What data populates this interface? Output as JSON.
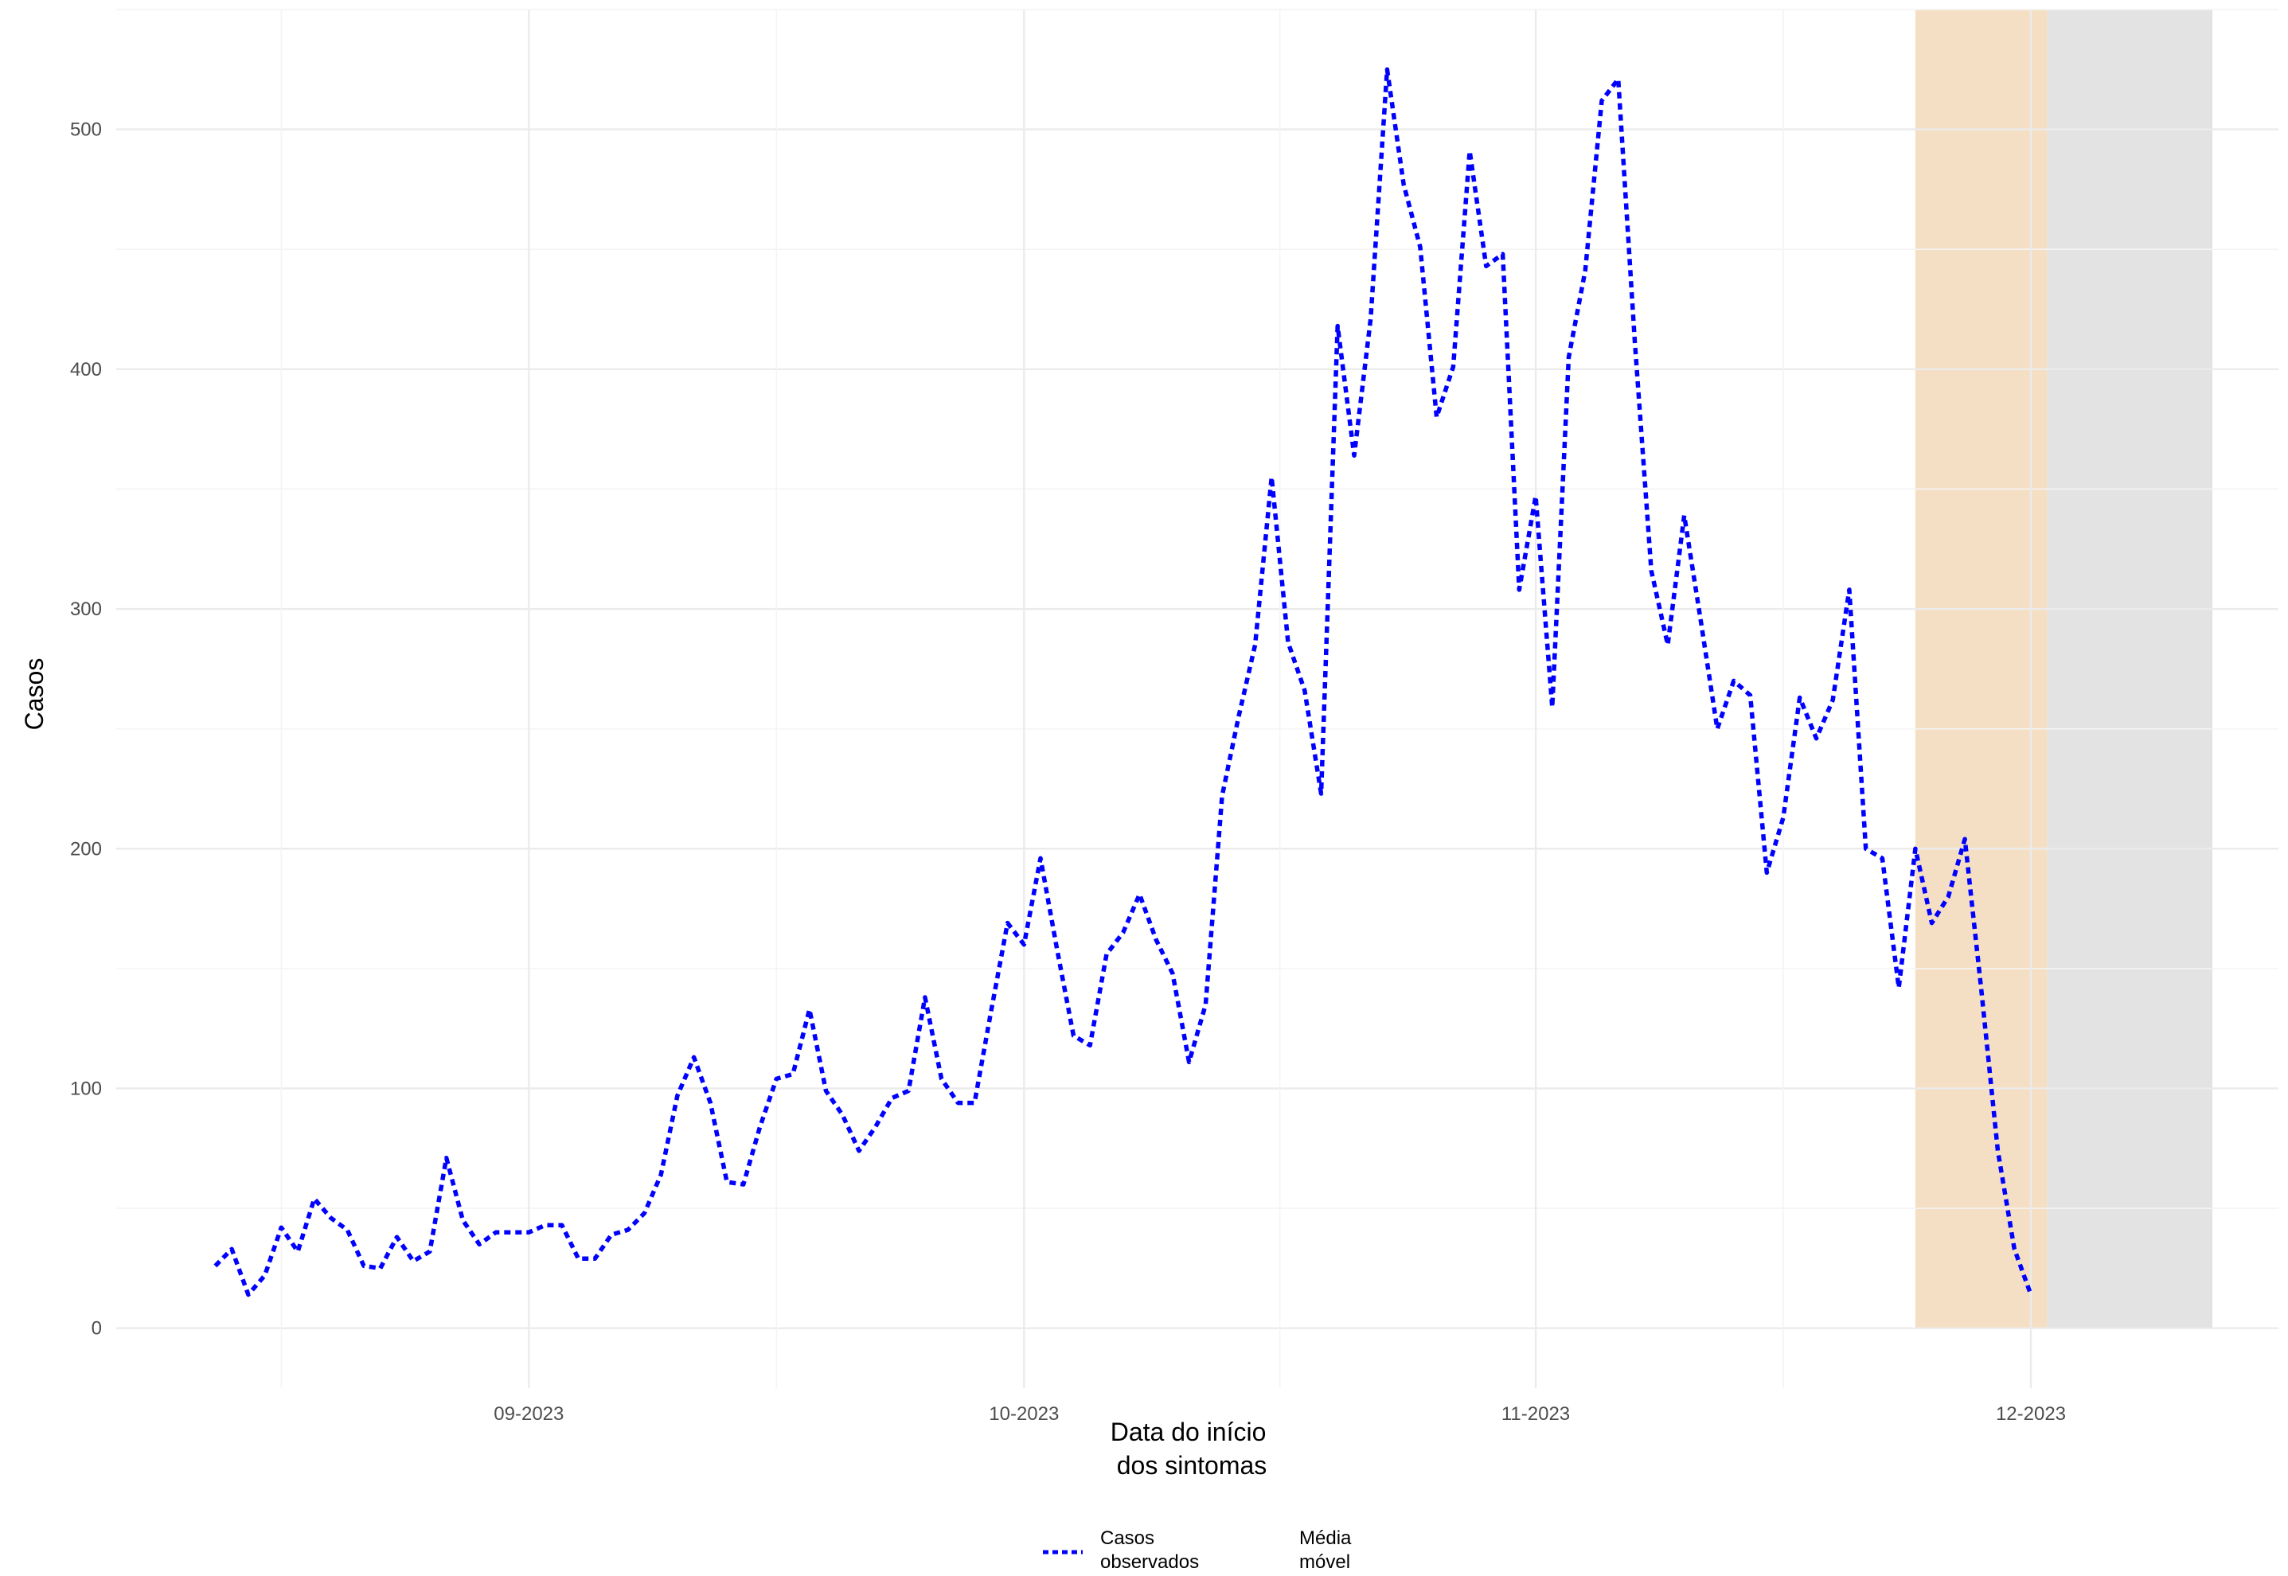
{
  "chart_data": {
    "type": "line",
    "xlabel": [
      "Data do início",
      "dos sintomas"
    ],
    "ylabel": "Casos",
    "x_ticks": [
      {
        "date": "2023-09-01",
        "label": "09-2023"
      },
      {
        "date": "2023-10-01",
        "label": "10-2023"
      },
      {
        "date": "2023-11-01",
        "label": "11-2023"
      },
      {
        "date": "2023-12-01",
        "label": "12-2023"
      }
    ],
    "y_ticks": [
      0,
      100,
      200,
      300,
      400,
      500
    ],
    "ylim": [
      -25,
      550
    ],
    "xlim": [
      "2023-08-07",
      "2023-12-16"
    ],
    "grid": true,
    "legend_position": "bottom",
    "shaded_regions": [
      {
        "start": "2023-11-24",
        "end": "2023-12-02",
        "color": "#f5dfc4"
      },
      {
        "start": "2023-12-02",
        "end": "2023-12-12",
        "color": "#e3e3e3"
      }
    ],
    "legend": [
      {
        "label": [
          "Casos",
          "observados"
        ],
        "color": "#0000ff",
        "style": "dotted"
      },
      {
        "label": [
          "Média",
          "móvel"
        ],
        "color": "",
        "style": "none"
      }
    ],
    "series": [
      {
        "name": "Casos observados",
        "color": "#0000ff",
        "style": "dotted",
        "x": [
          "2023-08-13",
          "2023-08-14",
          "2023-08-15",
          "2023-08-16",
          "2023-08-17",
          "2023-08-18",
          "2023-08-19",
          "2023-08-20",
          "2023-08-21",
          "2023-08-22",
          "2023-08-23",
          "2023-08-24",
          "2023-08-25",
          "2023-08-26",
          "2023-08-27",
          "2023-08-28",
          "2023-08-29",
          "2023-08-30",
          "2023-08-31",
          "2023-09-01",
          "2023-09-02",
          "2023-09-03",
          "2023-09-04",
          "2023-09-05",
          "2023-09-06",
          "2023-09-07",
          "2023-09-08",
          "2023-09-09",
          "2023-09-10",
          "2023-09-11",
          "2023-09-12",
          "2023-09-13",
          "2023-09-14",
          "2023-09-15",
          "2023-09-16",
          "2023-09-17",
          "2023-09-18",
          "2023-09-19",
          "2023-09-20",
          "2023-09-21",
          "2023-09-22",
          "2023-09-23",
          "2023-09-24",
          "2023-09-25",
          "2023-09-26",
          "2023-09-27",
          "2023-09-28",
          "2023-09-29",
          "2023-09-30",
          "2023-10-01",
          "2023-10-02",
          "2023-10-03",
          "2023-10-04",
          "2023-10-05",
          "2023-10-06",
          "2023-10-07",
          "2023-10-08",
          "2023-10-09",
          "2023-10-10",
          "2023-10-11",
          "2023-10-12",
          "2023-10-13",
          "2023-10-14",
          "2023-10-15",
          "2023-10-16",
          "2023-10-17",
          "2023-10-18",
          "2023-10-19",
          "2023-10-20",
          "2023-10-21",
          "2023-10-22",
          "2023-10-23",
          "2023-10-24",
          "2023-10-25",
          "2023-10-26",
          "2023-10-27",
          "2023-10-28",
          "2023-10-29",
          "2023-10-30",
          "2023-10-31",
          "2023-11-01",
          "2023-11-02",
          "2023-11-03",
          "2023-11-04",
          "2023-11-05",
          "2023-11-06",
          "2023-11-07",
          "2023-11-08",
          "2023-11-09",
          "2023-11-10",
          "2023-11-11",
          "2023-11-12",
          "2023-11-13",
          "2023-11-14",
          "2023-11-15",
          "2023-11-16",
          "2023-11-17",
          "2023-11-18",
          "2023-11-19",
          "2023-11-20",
          "2023-11-21",
          "2023-11-22",
          "2023-11-23",
          "2023-11-24",
          "2023-11-25",
          "2023-11-26",
          "2023-11-27",
          "2023-11-28",
          "2023-11-29",
          "2023-11-30",
          "2023-12-01"
        ],
        "values": [
          26,
          33,
          14,
          22,
          42,
          32,
          54,
          46,
          41,
          26,
          25,
          38,
          28,
          32,
          71,
          45,
          35,
          40,
          40,
          40,
          43,
          43,
          29,
          29,
          39,
          41,
          48,
          64,
          97,
          113,
          94,
          61,
          60,
          84,
          104,
          106,
          133,
          99,
          89,
          74,
          84,
          96,
          99,
          138,
          104,
          94,
          94,
          132,
          169,
          160,
          196,
          158,
          122,
          118,
          156,
          165,
          181,
          162,
          148,
          111,
          135,
          222,
          255,
          285,
          355,
          286,
          266,
          223,
          418,
          364,
          421,
          525,
          477,
          451,
          380,
          401,
          491,
          443,
          448,
          308,
          347,
          259,
          405,
          441,
          512,
          521,
          412,
          316,
          285,
          339,
          295,
          250,
          270,
          264,
          190,
          213,
          263,
          246,
          262,
          308,
          200,
          196,
          142,
          200,
          169,
          180,
          204,
          141,
          74,
          33,
          14
        ]
      }
    ]
  }
}
